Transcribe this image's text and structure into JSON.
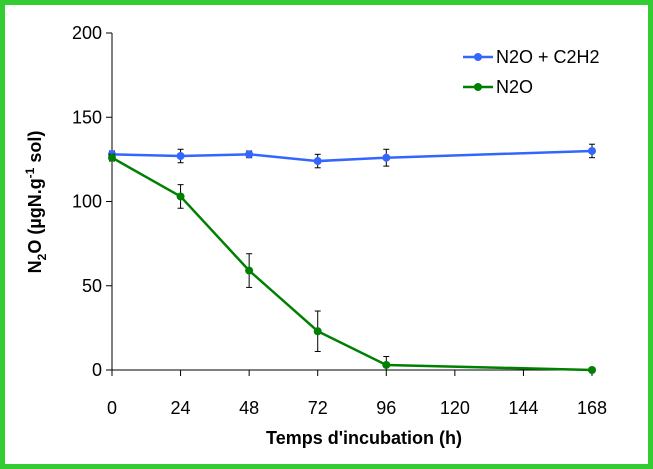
{
  "chart_data": {
    "type": "line",
    "xlabel": "Temps d'incubation (h)",
    "ylabel": {
      "base": "N",
      "sub": "2",
      "mid": "O (µgN.g",
      "sup": "-1",
      "end": " sol)"
    },
    "x_ticks": [
      "0",
      "24",
      "48",
      "72",
      "96",
      "120",
      "144",
      "168"
    ],
    "y_ticks": [
      "0",
      "50",
      "100",
      "150",
      "200"
    ],
    "xlim": [
      0,
      168
    ],
    "ylim": [
      0,
      200
    ],
    "grid": false,
    "legend_position": "top-right",
    "series": [
      {
        "name": "N2O + C2H2",
        "color": "#3366ff",
        "x": [
          0,
          24,
          48,
          72,
          96,
          168
        ],
        "y": [
          128,
          127,
          128,
          124,
          126,
          130
        ],
        "err": [
          2,
          4,
          2,
          4,
          5,
          4
        ]
      },
      {
        "name": "N2O",
        "color": "#008000",
        "x": [
          0,
          24,
          48,
          72,
          96,
          168
        ],
        "y": [
          126,
          103,
          59,
          23,
          3,
          0
        ],
        "err": [
          2,
          7,
          10,
          12,
          5,
          1
        ]
      }
    ]
  },
  "frame_color": "#33cc33"
}
